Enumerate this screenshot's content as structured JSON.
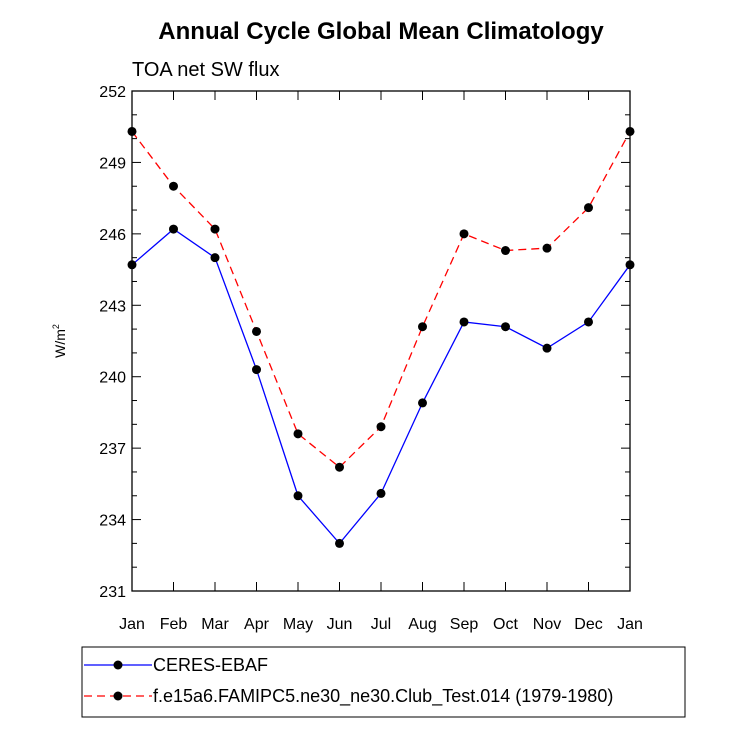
{
  "chart_data": {
    "type": "line",
    "title": "Annual Cycle Global Mean Climatology",
    "subtitle": "TOA net SW flux",
    "ylabel_base": "W/m",
    "ylabel_sup": "2",
    "xlabel": "",
    "categories": [
      "Jan",
      "Feb",
      "Mar",
      "Apr",
      "May",
      "Jun",
      "Jul",
      "Aug",
      "Sep",
      "Oct",
      "Nov",
      "Dec",
      "Jan"
    ],
    "ylim": [
      231,
      252
    ],
    "yticks": [
      231,
      234,
      237,
      240,
      243,
      246,
      249,
      252
    ],
    "series": [
      {
        "name": "CERES-EBAF",
        "color": "#0000ff",
        "dash": "solid",
        "values": [
          244.7,
          246.2,
          245.0,
          240.3,
          235.0,
          233.0,
          235.1,
          238.9,
          242.3,
          242.1,
          241.2,
          242.3,
          244.7
        ]
      },
      {
        "name": "f.e15a6.FAMIPC5.ne30_ne30.Club_Test.014 (1979-1980)",
        "color": "#ff0000",
        "dash": "dashed",
        "values": [
          250.3,
          248.0,
          246.2,
          241.9,
          237.6,
          236.2,
          237.9,
          242.1,
          246.0,
          245.3,
          245.4,
          247.1,
          250.3
        ]
      }
    ],
    "grid": false,
    "legend_position": "bottom"
  }
}
